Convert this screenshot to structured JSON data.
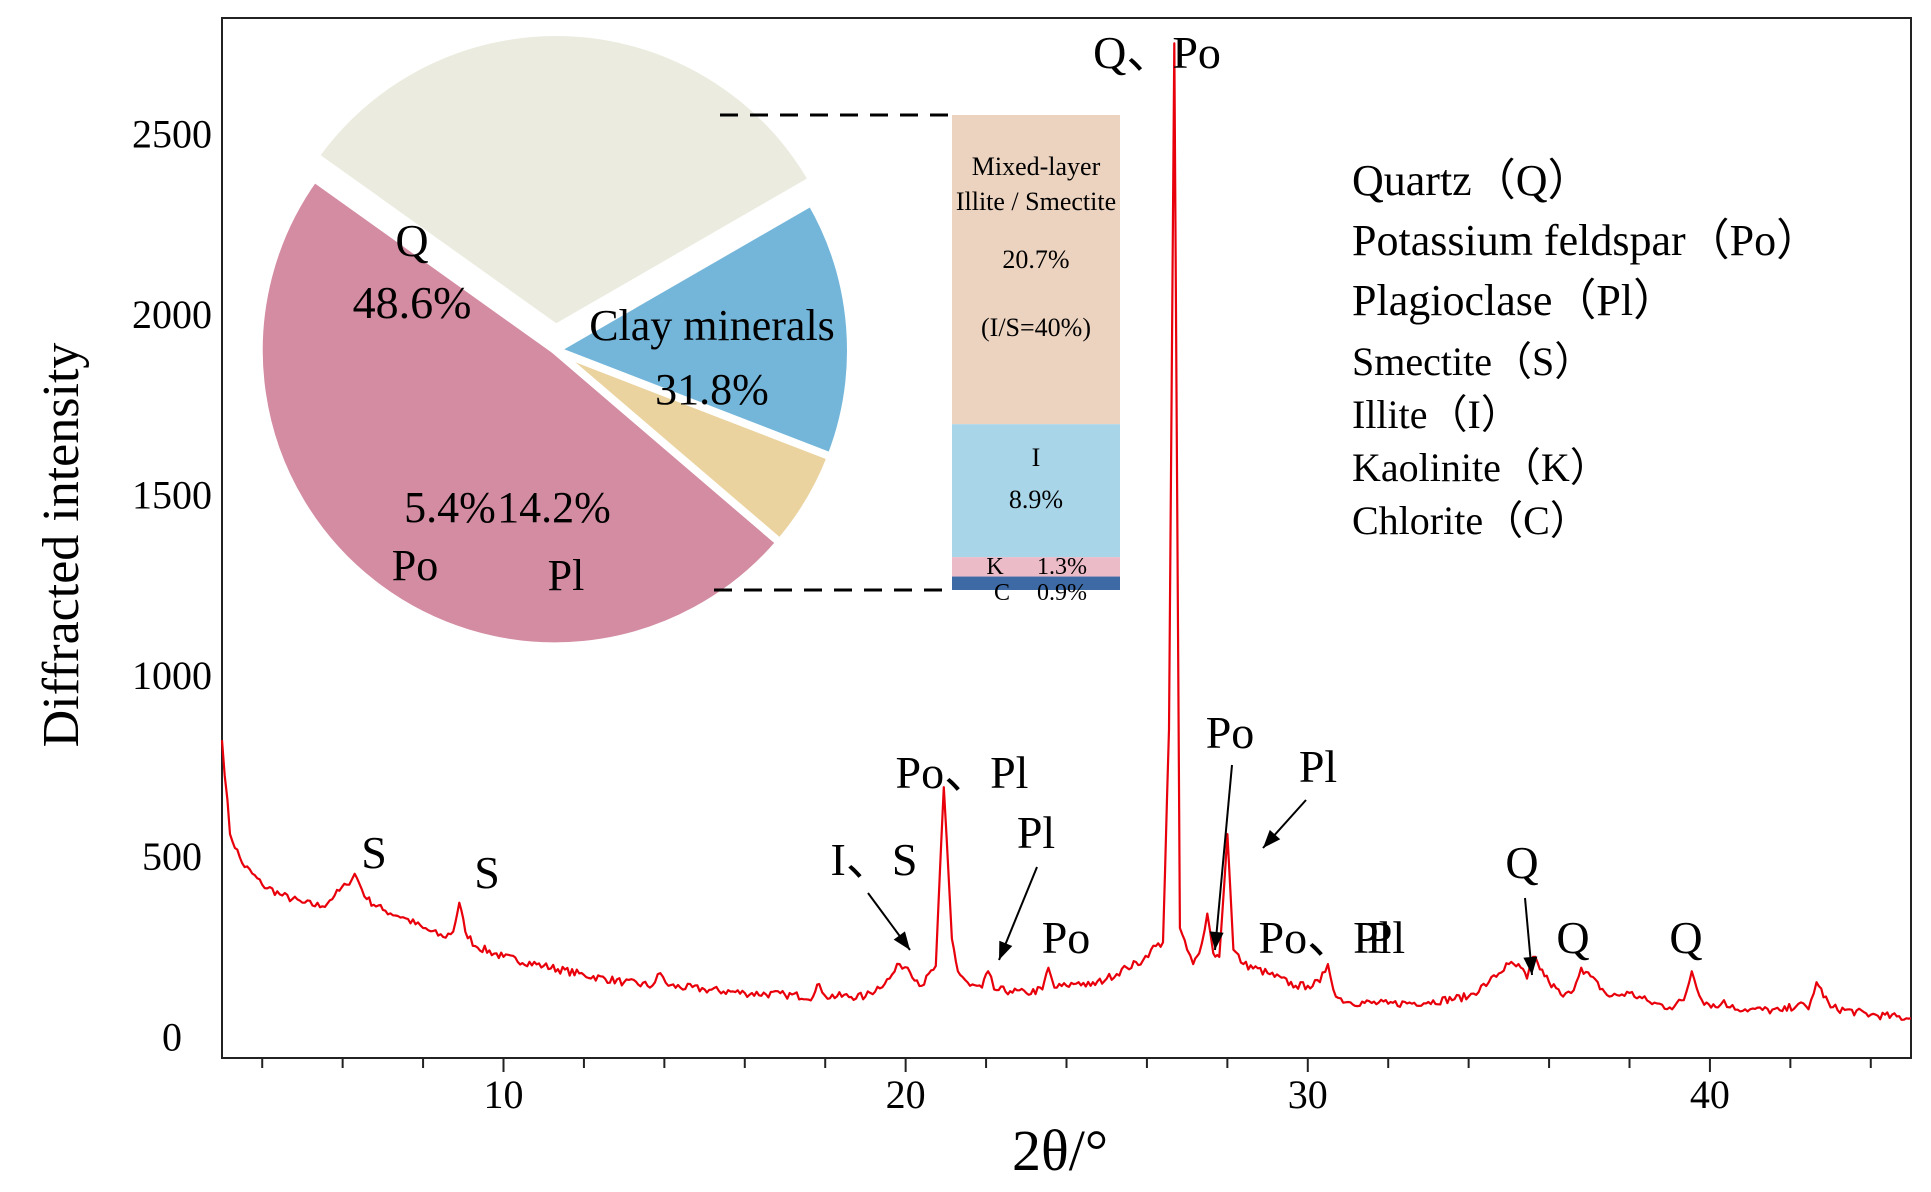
{
  "chart_data": [
    {
      "type": "line",
      "xlabel": "2θ/°",
      "ylabel": "Diffracted intensity",
      "xlim": [
        3,
        45
      ],
      "ylim": [
        -60,
        2820
      ],
      "x_ticks": [
        10,
        20,
        30,
        40
      ],
      "y_ticks": [
        0,
        500,
        1000,
        1500,
        2000,
        2500
      ],
      "line_color": "#e8000b",
      "series": [
        {
          "x": [
            3,
            3.2,
            3.5,
            4,
            4.5,
            5,
            5.5,
            5.8,
            6.1,
            6.3,
            6.6,
            7,
            7.5,
            8,
            8.5,
            8.75,
            8.9,
            9.05,
            9.3,
            10,
            11,
            12,
            13,
            13.7,
            13.9,
            14.1,
            15,
            16,
            17,
            17.7,
            17.85,
            18,
            19,
            19.6,
            19.85,
            20.05,
            20.4,
            20.75,
            20.95,
            21.15,
            21.3,
            21.6,
            21.9,
            22.05,
            22.2,
            22.6,
            23,
            23.4,
            23.55,
            23.7,
            24,
            24.3,
            24.6,
            25,
            25.5,
            25.9,
            26.1,
            26.4,
            26.55,
            26.68,
            26.82,
            27,
            27.15,
            27.3,
            27.5,
            27.65,
            27.8,
            28,
            28.15,
            28.4,
            29,
            29.7,
            30,
            30.3,
            30.5,
            30.7,
            31,
            32,
            33,
            34,
            34.5,
            35,
            35.3,
            35.45,
            35.6,
            36,
            36.35,
            36.55,
            36.8,
            37.5,
            38,
            38.5,
            39,
            39.35,
            39.55,
            39.8,
            40.2,
            40.35,
            40.5,
            41,
            41.8,
            42.2,
            42.45,
            42.65,
            43,
            44,
            45
          ],
          "y": [
            820,
            560,
            480,
            420,
            390,
            370,
            360,
            390,
            420,
            450,
            380,
            350,
            330,
            300,
            275,
            290,
            370,
            290,
            250,
            220,
            195,
            170,
            150,
            140,
            175,
            140,
            130,
            120,
            115,
            110,
            145,
            112,
            110,
            160,
            200,
            190,
            140,
            195,
            690,
            270,
            180,
            140,
            135,
            180,
            130,
            125,
            120,
            130,
            190,
            135,
            140,
            150,
            140,
            160,
            190,
            210,
            240,
            260,
            850,
            2750,
            300,
            240,
            200,
            230,
            340,
            230,
            220,
            560,
            240,
            200,
            175,
            140,
            140,
            150,
            200,
            110,
            95,
            90,
            95,
            110,
            150,
            200,
            190,
            160,
            220,
            150,
            110,
            120,
            190,
            110,
            120,
            95,
            80,
            100,
            180,
            100,
            80,
            100,
            80,
            75,
            70,
            90,
            75,
            150,
            80,
            60,
            50
          ]
        }
      ],
      "peak_labels": [
        "S",
        "S",
        "I、S",
        "Po、Pl",
        "Pl",
        "Po",
        "Q、Po",
        "Po",
        "Pl",
        "Po、Pl",
        "Pl",
        "Q",
        "Q",
        "Q"
      ],
      "legend_items": [
        "Quartz（Q）",
        "Potassium feldspar（Po）",
        "Plagioclase（Pl）",
        "Smectite（S）",
        "Illite（I）",
        "Kaolinite（K）",
        "Chlorite（C）"
      ]
    },
    {
      "type": "pie",
      "slices": [
        {
          "name": "Q",
          "label": "48.6%",
          "value": 48.6,
          "color": "#d38ca2"
        },
        {
          "name": "Po",
          "label": "5.4%",
          "value": 5.4,
          "color": "#ebd3a0"
        },
        {
          "name": "Pl",
          "label": "14.2%",
          "value": 14.2,
          "color": "#74b6da"
        },
        {
          "name": "Clay minerals",
          "label": "31.8%",
          "value": 31.8,
          "color": "#ebebdf",
          "exploded": true
        }
      ]
    },
    {
      "type": "bar",
      "stacked": true,
      "segments": [
        {
          "name_lines": [
            "Mixed-layer",
            "Illite / Smectite"
          ],
          "label": "20.7%",
          "note": "(I/S=40%)",
          "value": 20.7,
          "color": "#ecd3c0"
        },
        {
          "name_lines": [
            "I"
          ],
          "label": "8.9%",
          "value": 8.9,
          "color": "#a9d5e8"
        },
        {
          "name_lines": [
            "K"
          ],
          "label": "1.3%",
          "value": 1.3,
          "color": "#ebbbc8"
        },
        {
          "name_lines": [
            "C"
          ],
          "label": "0.9%",
          "value": 0.9,
          "color": "#3d6aa5"
        }
      ]
    }
  ]
}
